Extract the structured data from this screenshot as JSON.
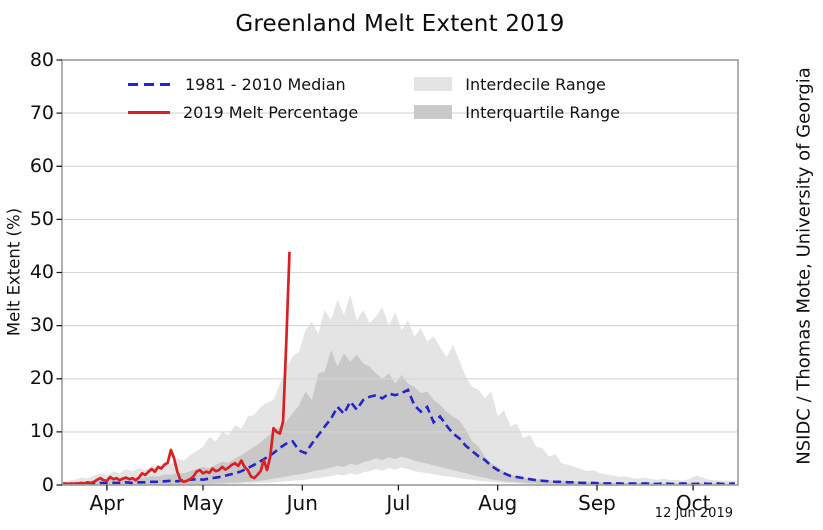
{
  "title": "Greenland Melt Extent 2019",
  "credit": "NSIDC / Thomas Mote, University of Georgia",
  "date_stamp": "12 Jun 2019",
  "axes": {
    "y_label": "Melt Extent (%)",
    "y_tick_labels": [
      "0",
      "10",
      "20",
      "30",
      "40",
      "50",
      "60",
      "70",
      "80"
    ],
    "x_tick_labels": [
      "Apr",
      "May",
      "Jun",
      "Jul",
      "Aug",
      "Sep",
      "Oct"
    ]
  },
  "legend": {
    "entries": [
      {
        "label": "1981 - 2010 Median",
        "swatch": "dashed-line",
        "color": "#2424cd"
      },
      {
        "label": "2019 Melt Percentage",
        "swatch": "solid-line",
        "color": "#d92123"
      },
      {
        "label": "Interdecile Range",
        "swatch": "patch",
        "color": "#e4e4e4"
      },
      {
        "label": "Interquartile Range",
        "swatch": "patch",
        "color": "#c8c8c8"
      }
    ]
  },
  "chart_data": {
    "type": "line",
    "title": "Greenland Melt Extent 2019",
    "xlabel": "",
    "ylabel": "Melt Extent (%)",
    "x_unit": "days since Apr 1",
    "x_domain": [
      0,
      211
    ],
    "y_domain": [
      0,
      80
    ],
    "y_ticks": [
      0,
      10,
      20,
      30,
      40,
      50,
      60,
      70,
      80
    ],
    "x_ticks": [
      {
        "day": 14,
        "label": "Apr"
      },
      {
        "day": 44,
        "label": "May"
      },
      {
        "day": 75,
        "label": "Jun"
      },
      {
        "day": 105,
        "label": "Jul"
      },
      {
        "day": 136,
        "label": "Aug"
      },
      {
        "day": 167,
        "label": "Sep"
      },
      {
        "day": 197,
        "label": "Oct"
      }
    ],
    "grid": "horizontal",
    "legend_position": "upper-left-inside",
    "bands": [
      {
        "name": "Interdecile Range",
        "color": "#e4e4e4",
        "day_start": 0,
        "day_step": 2,
        "upper": [
          0.5,
          0.8,
          1.0,
          1.4,
          1.2,
          1.8,
          2.2,
          1.8,
          2.6,
          2.2,
          3.0,
          2.6,
          3.2,
          2.8,
          3.6,
          3.4,
          4.4,
          4.0,
          5.0,
          4.6,
          5.6,
          6.4,
          7.2,
          9.1,
          8.2,
          10.0,
          9.4,
          11.3,
          10.6,
          12.9,
          13.2,
          14.7,
          15.5,
          16.0,
          19.0,
          22.0,
          24.2,
          25.1,
          29.2,
          30.7,
          28.5,
          32.9,
          31.1,
          34.8,
          32.0,
          35.8,
          31.0,
          32.9,
          30.5,
          31.7,
          33.5,
          30.0,
          32.5,
          29.2,
          31.0,
          27.9,
          29.5,
          27.0,
          28.0,
          26.0,
          24.0,
          26.4,
          23.5,
          20.4,
          18.5,
          17.9,
          16.3,
          17.6,
          12.9,
          14.1,
          11.0,
          11.6,
          8.8,
          9.5,
          7.2,
          6.9,
          5.3,
          5.8,
          4.1,
          3.8,
          3.4,
          3.0,
          2.6,
          2.8,
          2.2,
          2.0,
          1.8,
          1.5,
          1.6,
          1.3,
          1.2,
          1.4,
          1.1,
          1.0,
          1.2,
          0.9,
          1.0,
          0.8,
          1.2,
          1.8,
          1.4,
          1.0,
          0.9,
          0.8,
          0.8,
          0.7
        ],
        "lower": [
          0,
          0,
          0,
          0,
          0,
          0,
          0,
          0,
          0,
          0,
          0,
          0,
          0,
          0,
          0,
          0,
          0,
          0,
          0,
          0,
          0,
          0,
          0.1,
          0.1,
          0.1,
          0.1,
          0.2,
          0.2,
          0.2,
          0.3,
          0.3,
          0.4,
          0.4,
          0.5,
          0.6,
          0.7,
          0.8,
          0.9,
          1.0,
          1.2,
          1.3,
          1.5,
          1.7,
          2.0,
          1.8,
          2.2,
          1.9,
          2.4,
          2.6,
          3.0,
          2.7,
          3.2,
          2.9,
          3.3,
          3.0,
          2.6,
          2.4,
          2.2,
          2.0,
          1.8,
          1.6,
          1.5,
          1.3,
          1.1,
          1.0,
          0.8,
          0.7,
          0.6,
          0.5,
          0.4,
          0.3,
          0.3,
          0.2,
          0.2,
          0.1,
          0.1,
          0.1,
          0.1,
          0,
          0,
          0,
          0,
          0,
          0,
          0,
          0,
          0,
          0,
          0,
          0,
          0,
          0,
          0,
          0,
          0,
          0,
          0,
          0,
          0,
          0,
          0,
          0,
          0,
          0,
          0,
          0
        ]
      },
      {
        "name": "Interquartile Range",
        "color": "#c8c8c8",
        "day_start": 0,
        "day_step": 2,
        "upper": [
          0.3,
          0.4,
          0.5,
          0.6,
          0.6,
          0.8,
          1.0,
          0.9,
          1.2,
          1.1,
          1.4,
          1.2,
          1.5,
          1.4,
          1.7,
          1.6,
          2.0,
          1.9,
          2.3,
          2.2,
          2.6,
          3.0,
          3.4,
          3.2,
          3.8,
          4.4,
          4.2,
          5.0,
          5.6,
          6.4,
          7.2,
          8.0,
          9.1,
          10.0,
          11.0,
          12.0,
          13.5,
          15.0,
          17.6,
          16.0,
          21.0,
          21.3,
          25.4,
          22.3,
          24.8,
          23.2,
          24.5,
          22.9,
          22.3,
          21.0,
          20.0,
          21.0,
          19.1,
          20.7,
          19.1,
          18.5,
          17.3,
          17.6,
          16.0,
          15.1,
          13.8,
          12.9,
          12.2,
          10.4,
          8.2,
          7.2,
          5.3,
          4.1,
          3.4,
          2.5,
          1.9,
          1.6,
          1.4,
          1.2,
          1.1,
          1.0,
          0.9,
          0.8,
          0.8,
          0.7,
          0.7,
          0.6,
          0.6,
          0.5,
          0.5,
          0.5,
          0.4,
          0.4,
          0.4,
          0.4,
          0.4,
          0.4,
          0.3,
          0.3,
          0.3,
          0.3,
          0.3,
          0.3,
          0.3,
          0.4,
          0.3,
          0.3,
          0.3,
          0.3,
          0.3,
          0.3
        ],
        "lower": [
          0,
          0,
          0,
          0,
          0,
          0,
          0,
          0,
          0,
          0,
          0,
          0,
          0,
          0,
          0,
          0,
          0,
          0,
          0,
          0.1,
          0.1,
          0.1,
          0.2,
          0.2,
          0.3,
          0.3,
          0.4,
          0.4,
          0.5,
          0.6,
          0.7,
          0.8,
          1.0,
          1.2,
          1.4,
          1.6,
          1.8,
          2.0,
          2.2,
          2.5,
          2.8,
          3.0,
          3.3,
          3.6,
          3.4,
          4.0,
          3.7,
          4.3,
          4.6,
          5.0,
          4.7,
          5.2,
          4.9,
          5.3,
          5.0,
          4.6,
          4.3,
          4.0,
          3.7,
          3.4,
          3.1,
          2.8,
          2.5,
          2.2,
          1.9,
          1.6,
          1.4,
          1.1,
          0.9,
          0.7,
          0.6,
          0.5,
          0.4,
          0.3,
          0.3,
          0.2,
          0.2,
          0.2,
          0.1,
          0.1,
          0.1,
          0.1,
          0.1,
          0,
          0,
          0,
          0,
          0,
          0,
          0,
          0,
          0,
          0,
          0,
          0,
          0,
          0,
          0,
          0,
          0,
          0,
          0,
          0,
          0,
          0,
          0
        ]
      }
    ],
    "series": [
      {
        "name": "1981 - 2010 Median",
        "color": "#2424cd",
        "style": "dashed",
        "day_start": 0,
        "day_step": 2,
        "values": [
          0.2,
          0.2,
          0.3,
          0.2,
          0.3,
          0.3,
          0.4,
          0.3,
          0.4,
          0.4,
          0.5,
          0.4,
          0.5,
          0.5,
          0.6,
          0.6,
          0.7,
          0.8,
          0.7,
          0.9,
          1.0,
          1.1,
          1.0,
          1.2,
          1.4,
          1.6,
          1.9,
          2.2,
          2.6,
          3.2,
          3.8,
          4.5,
          5.2,
          6.0,
          7.0,
          7.8,
          8.2,
          6.5,
          6.0,
          7.8,
          9.4,
          11.0,
          12.5,
          14.7,
          13.4,
          15.7,
          14.2,
          16.0,
          16.6,
          16.9,
          16.3,
          17.2,
          16.9,
          17.3,
          17.9,
          15.0,
          13.8,
          14.7,
          11.8,
          12.9,
          11.2,
          9.7,
          8.8,
          7.4,
          6.4,
          5.4,
          4.7,
          3.6,
          2.8,
          2.2,
          1.7,
          1.5,
          1.3,
          1.1,
          0.9,
          0.8,
          0.7,
          0.6,
          0.6,
          0.5,
          0.5,
          0.4,
          0.4,
          0.4,
          0.3,
          0.3,
          0.3,
          0.3,
          0.2,
          0.3,
          0.2,
          0.3,
          0.2,
          0.2,
          0.3,
          0.2,
          0.2,
          0.3,
          0.2,
          0.2,
          0.3,
          0.2,
          0.3,
          0.2,
          0.2,
          0.3
        ]
      },
      {
        "name": "2019 Melt Percentage",
        "color": "#d92123",
        "style": "solid",
        "day_start": 0,
        "day_step": 1,
        "values": [
          0.2,
          0.3,
          0.2,
          0.3,
          0.2,
          0.3,
          0.4,
          0.3,
          0.5,
          0.4,
          0.6,
          1.0,
          1.3,
          0.9,
          0.8,
          1.5,
          1.1,
          1.3,
          0.9,
          1.2,
          1.4,
          1.1,
          1.3,
          0.9,
          1.4,
          2.2,
          1.9,
          2.5,
          3.0,
          2.5,
          3.4,
          3.1,
          3.8,
          4.2,
          6.6,
          5.0,
          2.5,
          0.9,
          0.6,
          0.8,
          1.1,
          1.6,
          2.5,
          2.8,
          2.2,
          2.5,
          2.3,
          3.1,
          2.6,
          2.8,
          3.4,
          2.9,
          3.3,
          3.8,
          4.1,
          3.6,
          4.6,
          3.4,
          2.8,
          1.6,
          1.3,
          1.9,
          2.6,
          4.7,
          2.8,
          5.3,
          10.7,
          10.0,
          9.7,
          12.0,
          27.0,
          43.9
        ]
      }
    ]
  }
}
